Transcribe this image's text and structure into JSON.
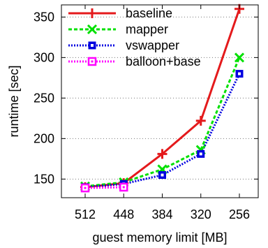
{
  "chart_data": {
    "type": "line",
    "xlabel": "guest memory limit [MB]",
    "ylabel": "runtime [sec]",
    "categories": [
      "512",
      "448",
      "384",
      "320",
      "256"
    ],
    "ylim": [
      127,
      365
    ],
    "yticks": [
      150,
      200,
      250,
      300,
      350
    ],
    "grid": "horizontal dotted",
    "legend_position": "top-left",
    "series": [
      {
        "name": "baseline",
        "color": "#e41a1c",
        "marker": "plus",
        "line": "solid",
        "values": [
          140,
          145,
          181,
          222,
          360
        ]
      },
      {
        "name": "mapper",
        "color": "#00e000",
        "marker": "x",
        "line": "dashed",
        "values": [
          141,
          146,
          162,
          186,
          300
        ]
      },
      {
        "name": "vswapper",
        "color": "#0000e0",
        "marker": "square-filled",
        "line": "dotted",
        "values": [
          140,
          144,
          155,
          181,
          280
        ]
      },
      {
        "name": "balloon+base",
        "color": "#ff00ff",
        "marker": "square-open",
        "line": "dotted",
        "values": [
          139,
          140,
          null,
          null,
          null
        ]
      }
    ]
  }
}
